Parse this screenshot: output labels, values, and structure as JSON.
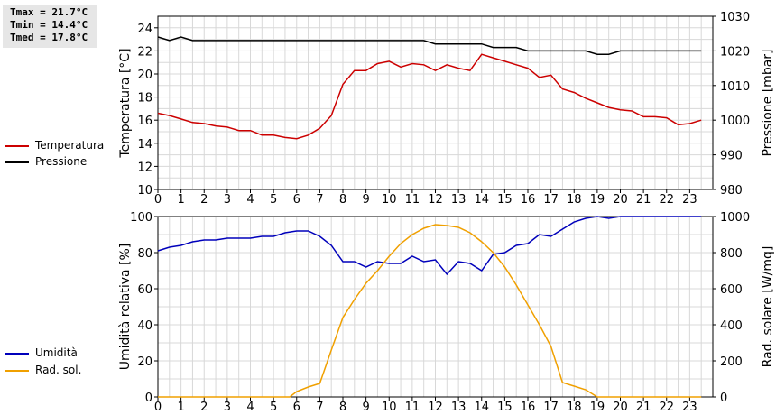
{
  "stats": {
    "tmax": "Tmax = 21.7°C",
    "tmin": "Tmin = 14.4°C",
    "tmed": "Tmed = 17.8°C"
  },
  "legend_top": [
    {
      "label": "Temperatura",
      "color": "#cc0000"
    },
    {
      "label": "Pressione",
      "color": "#000000"
    }
  ],
  "legend_bottom": [
    {
      "label": "Umidità",
      "color": "#0000bb"
    },
    {
      "label": "Rad. sol.",
      "color": "#f0a000"
    }
  ],
  "chart_data": [
    {
      "type": "line",
      "xlabel": "",
      "xlim": [
        0,
        24
      ],
      "xticks": [
        0,
        1,
        2,
        3,
        4,
        5,
        6,
        7,
        8,
        9,
        10,
        11,
        12,
        13,
        14,
        15,
        16,
        17,
        18,
        19,
        20,
        21,
        22,
        23
      ],
      "ylabel": "Temperatura [°C]",
      "ylim": [
        10,
        25
      ],
      "yticks": [
        10,
        12,
        14,
        16,
        18,
        20,
        22,
        24
      ],
      "y2label": "Pressione [mbar]",
      "y2lim": [
        980,
        1030
      ],
      "y2ticks": [
        980,
        990,
        1000,
        1010,
        1020,
        1030
      ],
      "grid": true,
      "series": [
        {
          "name": "Temperatura",
          "axis": "left",
          "color": "#cc0000",
          "x": [
            0,
            0.5,
            1,
            1.5,
            2,
            2.5,
            3,
            3.5,
            4,
            4.5,
            5,
            5.5,
            6,
            6.5,
            7,
            7.5,
            8,
            8.5,
            9,
            9.5,
            10,
            10.5,
            11,
            11.5,
            12,
            12.5,
            13,
            13.5,
            14,
            14.5,
            15,
            15.5,
            16,
            16.5,
            17,
            17.5,
            18,
            18.5,
            19,
            19.5,
            20,
            20.5,
            21,
            21.5,
            22,
            22.5,
            23,
            23.5
          ],
          "values": [
            16.6,
            16.4,
            16.1,
            15.8,
            15.7,
            15.5,
            15.4,
            15.1,
            15.1,
            14.7,
            14.7,
            14.5,
            14.4,
            14.7,
            15.3,
            16.4,
            19.1,
            20.3,
            20.3,
            20.9,
            21.1,
            20.6,
            20.9,
            20.8,
            20.3,
            20.8,
            20.5,
            20.3,
            21.7,
            21.4,
            21.1,
            20.8,
            20.5,
            19.7,
            19.9,
            18.7,
            18.4,
            17.9,
            17.5,
            17.1,
            16.9,
            16.8,
            16.3,
            16.3,
            16.2,
            15.6,
            15.7,
            16.0
          ]
        },
        {
          "name": "Pressione",
          "axis": "right",
          "color": "#000000",
          "x": [
            0,
            0.5,
            1,
            1.5,
            2,
            2.5,
            3,
            3.5,
            4,
            4.5,
            5,
            5.5,
            6,
            6.5,
            7,
            7.5,
            8,
            8.5,
            9,
            9.5,
            10,
            10.5,
            11,
            11.5,
            12,
            12.5,
            13,
            13.5,
            14,
            14.5,
            15,
            15.5,
            16,
            16.5,
            17,
            17.5,
            18,
            18.5,
            19,
            19.5,
            20,
            20.5,
            21,
            21.5,
            22,
            22.5,
            23,
            23.5
          ],
          "values": [
            1024,
            1023,
            1024,
            1023,
            1023,
            1023,
            1023,
            1023,
            1023,
            1023,
            1023,
            1023,
            1023,
            1023,
            1023,
            1023,
            1023,
            1023,
            1023,
            1023,
            1023,
            1023,
            1023,
            1023,
            1022,
            1022,
            1022,
            1022,
            1022,
            1021,
            1021,
            1021,
            1020,
            1020,
            1020,
            1020,
            1020,
            1020,
            1019,
            1019,
            1020,
            1020,
            1020,
            1020,
            1020,
            1020,
            1020,
            1020
          ]
        }
      ]
    },
    {
      "type": "line",
      "xlabel": "",
      "xlim": [
        0,
        24
      ],
      "xticks": [
        0,
        1,
        2,
        3,
        4,
        5,
        6,
        7,
        8,
        9,
        10,
        11,
        12,
        13,
        14,
        15,
        16,
        17,
        18,
        19,
        20,
        21,
        22,
        23
      ],
      "ylabel": "Umidità relativa [%]",
      "ylim": [
        0,
        100
      ],
      "yticks": [
        0,
        20,
        40,
        60,
        80,
        100
      ],
      "y2label": "Rad. solare [W/mq]",
      "y2lim": [
        0,
        1000
      ],
      "y2ticks": [
        0,
        200,
        400,
        600,
        800,
        1000
      ],
      "grid": true,
      "series": [
        {
          "name": "Umidità",
          "axis": "left",
          "color": "#0000bb",
          "x": [
            0,
            0.5,
            1,
            1.5,
            2,
            2.5,
            3,
            3.5,
            4,
            4.5,
            5,
            5.5,
            6,
            6.5,
            7,
            7.5,
            8,
            8.5,
            9,
            9.5,
            10,
            10.5,
            11,
            11.5,
            12,
            12.5,
            13,
            13.5,
            14,
            14.5,
            15,
            15.5,
            16,
            16.5,
            17,
            17.5,
            18,
            18.5,
            19,
            19.5,
            20,
            20.5,
            21,
            21.5,
            22,
            22.5,
            23,
            23.5
          ],
          "values": [
            81,
            83,
            84,
            86,
            87,
            87,
            88,
            88,
            88,
            89,
            89,
            91,
            92,
            92,
            89,
            84,
            75,
            75,
            72,
            75,
            74,
            74,
            78,
            75,
            76,
            68,
            75,
            74,
            70,
            79,
            80,
            84,
            85,
            90,
            89,
            93,
            97,
            99,
            100,
            99,
            100,
            100,
            100,
            100,
            100,
            100,
            100,
            100
          ]
        },
        {
          "name": "Rad. sol.",
          "axis": "right",
          "color": "#f0a000",
          "x": [
            0,
            1,
            2,
            3,
            4,
            5,
            5.7,
            6,
            6.5,
            7,
            7.5,
            8,
            8.5,
            9,
            9.5,
            10,
            10.5,
            11,
            11.5,
            12,
            12.5,
            13,
            13.5,
            14,
            14.5,
            15,
            15.5,
            16,
            16.5,
            17,
            17.5,
            18,
            18.5,
            19,
            19.5,
            20,
            21,
            22,
            23,
            23.5
          ],
          "values": [
            0,
            0,
            0,
            0,
            0,
            0,
            0,
            30,
            55,
            75,
            260,
            440,
            540,
            630,
            700,
            780,
            850,
            900,
            935,
            955,
            950,
            940,
            910,
            860,
            800,
            720,
            620,
            510,
            400,
            280,
            80,
            60,
            40,
            0,
            0,
            0,
            0,
            0,
            0,
            0
          ]
        }
      ]
    }
  ]
}
